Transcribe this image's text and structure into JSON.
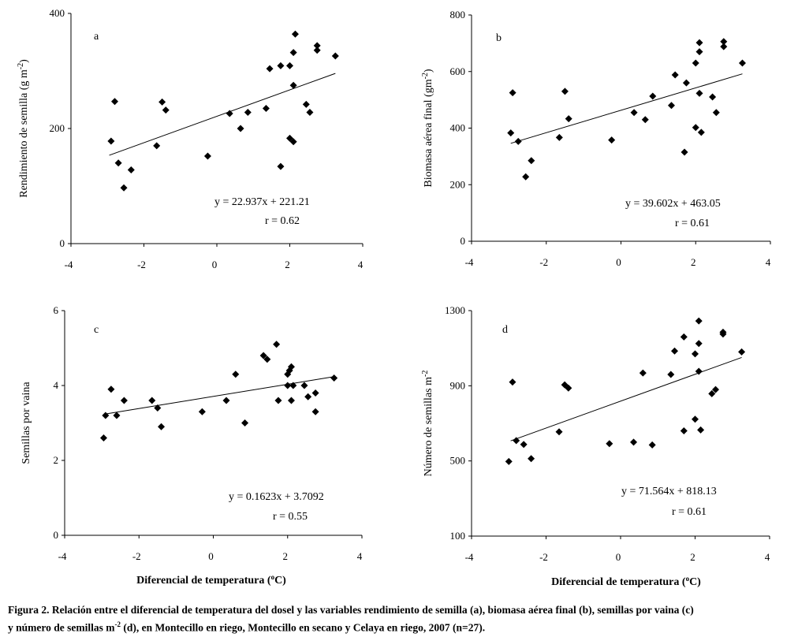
{
  "caption": {
    "part1": "Figura 2. Relación entre el diferencial de temperatura del dosel y las variables rendimiento de semilla (a), biomasa aérea final (b), semillas por vaina (c)",
    "part2": "y número de semillas m",
    "part2_sup": "-2",
    "part3": " (d), en Montecillo en riego,  Montecillo en secano y Celaya en riego, 2007 (n=27)."
  },
  "chart_data": [
    {
      "type": "scatter",
      "panel_label": "a",
      "ylabel": "Rendimiento de semilla  (g m",
      "ylabel_sup": "-2",
      "ylabel_end": ")",
      "xlabel": "",
      "xlim": [
        -4,
        4
      ],
      "ylim": [
        0,
        400
      ],
      "xticks": [
        "-4",
        "-2",
        "0",
        "2",
        "4"
      ],
      "yticks": [
        "0",
        "200",
        "400"
      ],
      "x": [
        -2.9,
        -2.8,
        -2.7,
        -2.55,
        -2.35,
        -1.65,
        -1.5,
        -1.4,
        -0.25,
        0.35,
        0.65,
        0.85,
        1.35,
        1.45,
        1.75,
        1.75,
        2.0,
        2.0,
        2.1,
        2.1,
        2.1,
        2.15,
        2.45,
        2.55,
        2.75,
        2.75,
        3.25
      ],
      "y": [
        178,
        247,
        140,
        97,
        128,
        170,
        246,
        232,
        152,
        226,
        200,
        228,
        235,
        304,
        134,
        309,
        183,
        309,
        177,
        332,
        275,
        364,
        242,
        228,
        336,
        344,
        326
      ],
      "fit": {
        "slope": 22.937,
        "intercept": 221.21,
        "x_range": [
          -2.95,
          3.25
        ]
      },
      "equation": "y = 22.937x + 221.21",
      "r_text": "r = 0.62"
    },
    {
      "type": "scatter",
      "panel_label": "b",
      "ylabel": "Biomasa  aérea  final  (gm",
      "ylabel_sup": "-2",
      "ylabel_end": ")",
      "xlabel": "",
      "xlim": [
        -4,
        4
      ],
      "ylim": [
        0,
        800
      ],
      "xticks": [
        "-4",
        "-2",
        "0",
        "2",
        "4"
      ],
      "yticks": [
        "0",
        "200",
        "400",
        "600",
        "800"
      ],
      "x": [
        -2.95,
        -2.9,
        -2.75,
        -2.55,
        -2.4,
        -1.65,
        -1.5,
        -1.4,
        -0.25,
        0.35,
        0.65,
        0.85,
        1.35,
        1.45,
        1.7,
        1.75,
        2.0,
        2.0,
        2.1,
        2.1,
        2.1,
        2.15,
        2.45,
        2.55,
        2.75,
        2.75,
        3.25
      ],
      "y": [
        383,
        525,
        353,
        228,
        285,
        367,
        530,
        433,
        358,
        455,
        430,
        513,
        480,
        588,
        315,
        560,
        630,
        402,
        702,
        670,
        523,
        385,
        510,
        455,
        706,
        688,
        630
      ],
      "fit": {
        "slope": 39.602,
        "intercept": 463.05,
        "x_range": [
          -2.95,
          3.25
        ]
      },
      "equation": "y = 39.602x + 463.05",
      "r_text": "r = 0.61"
    },
    {
      "type": "scatter",
      "panel_label": "c",
      "ylabel": "Semillas  por  vaina",
      "ylabel_sup": "",
      "ylabel_end": "",
      "xlabel": "Diferencial  de  temperatura  (",
      "xlabel_sup": "o",
      "xlabel_end": "C)",
      "xlim": [
        -4,
        4
      ],
      "ylim": [
        0,
        6
      ],
      "xticks": [
        "-4",
        "-2",
        "0",
        "2",
        "4"
      ],
      "yticks": [
        "0",
        "2",
        "4",
        "6"
      ],
      "x": [
        -2.95,
        -2.9,
        -2.75,
        -2.6,
        -2.4,
        -1.65,
        -1.5,
        -1.4,
        -0.3,
        0.35,
        0.6,
        0.85,
        1.35,
        1.45,
        1.7,
        1.75,
        2.0,
        2.0,
        2.05,
        2.1,
        2.1,
        2.15,
        2.45,
        2.55,
        2.75,
        2.75,
        3.25
      ],
      "y": [
        2.6,
        3.2,
        3.9,
        3.2,
        3.6,
        3.6,
        3.4,
        2.9,
        3.3,
        3.6,
        4.3,
        3.0,
        4.8,
        4.7,
        5.1,
        3.6,
        4.0,
        4.3,
        4.4,
        3.6,
        4.5,
        4.0,
        4.0,
        3.7,
        3.3,
        3.8,
        4.2
      ],
      "fit": {
        "slope": 0.1623,
        "intercept": 3.7092,
        "x_range": [
          -2.95,
          3.25
        ]
      },
      "equation": "y = 0.1623x + 3.7092",
      "r_text": "r = 0.55"
    },
    {
      "type": "scatter",
      "panel_label": "d",
      "ylabel": "Número  de  semillas  m",
      "ylabel_sup": "-2",
      "ylabel_end": "",
      "xlabel": "Diferencial  de  temperatura  (",
      "xlabel_sup": "o",
      "xlabel_end": "C)",
      "xlim": [
        -4,
        4
      ],
      "ylim": [
        100,
        1300
      ],
      "xticks": [
        "-4",
        "-2",
        "0",
        "2",
        "4"
      ],
      "yticks": [
        "100",
        "500",
        "900",
        "1300"
      ],
      "x": [
        -3.0,
        -2.9,
        -2.8,
        -2.6,
        -2.4,
        -1.65,
        -1.5,
        -1.4,
        -0.3,
        0.35,
        0.6,
        0.85,
        1.35,
        1.45,
        1.7,
        1.7,
        2.0,
        2.0,
        2.1,
        2.1,
        2.1,
        2.15,
        2.45,
        2.55,
        2.75,
        2.75,
        3.25
      ],
      "y": [
        497,
        920,
        608,
        588,
        512,
        655,
        905,
        888,
        592,
        600,
        968,
        585,
        960,
        1085,
        1160,
        660,
        1070,
        722,
        1245,
        1125,
        977,
        665,
        858,
        880,
        1175,
        1185,
        1080
      ],
      "fit": {
        "slope": 71.564,
        "intercept": 818.13,
        "x_range": [
          -2.95,
          3.25
        ]
      },
      "equation": "y = 71.564x + 818.13",
      "r_text": "r = 0.61"
    }
  ]
}
